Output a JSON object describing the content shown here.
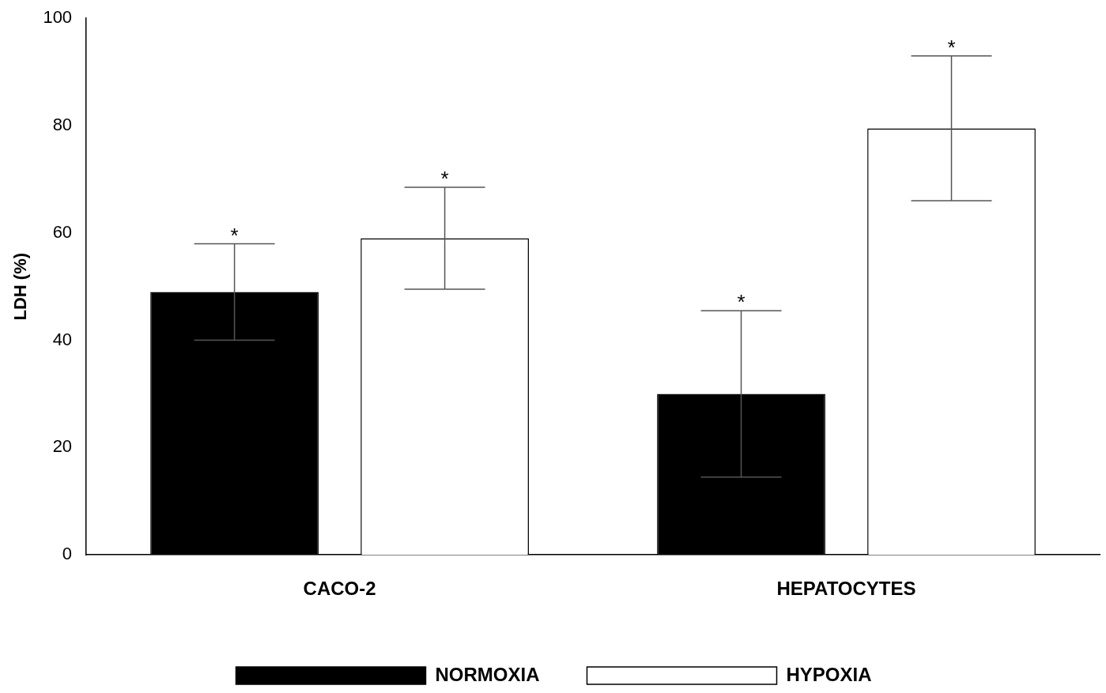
{
  "chart_data": {
    "type": "bar",
    "y_label": "LDH (%)",
    "categories": [
      "CACO-2",
      "HEPATOCYTES"
    ],
    "series": [
      {
        "name": "NORMOXIA",
        "color": "#000000",
        "values": [
          49,
          30
        ],
        "errors": [
          9,
          15.5
        ],
        "annotations": [
          "*",
          "*"
        ]
      },
      {
        "name": "HYPOXIA",
        "color": "#ffffff",
        "values": [
          59,
          79.5
        ],
        "errors": [
          9.5,
          13.5
        ],
        "annotations": [
          "*",
          "*"
        ]
      }
    ],
    "ylim": [
      0,
      100
    ],
    "yticks": [
      0,
      20,
      40,
      60,
      80,
      100
    ],
    "grid": false,
    "legend": "bottom"
  }
}
